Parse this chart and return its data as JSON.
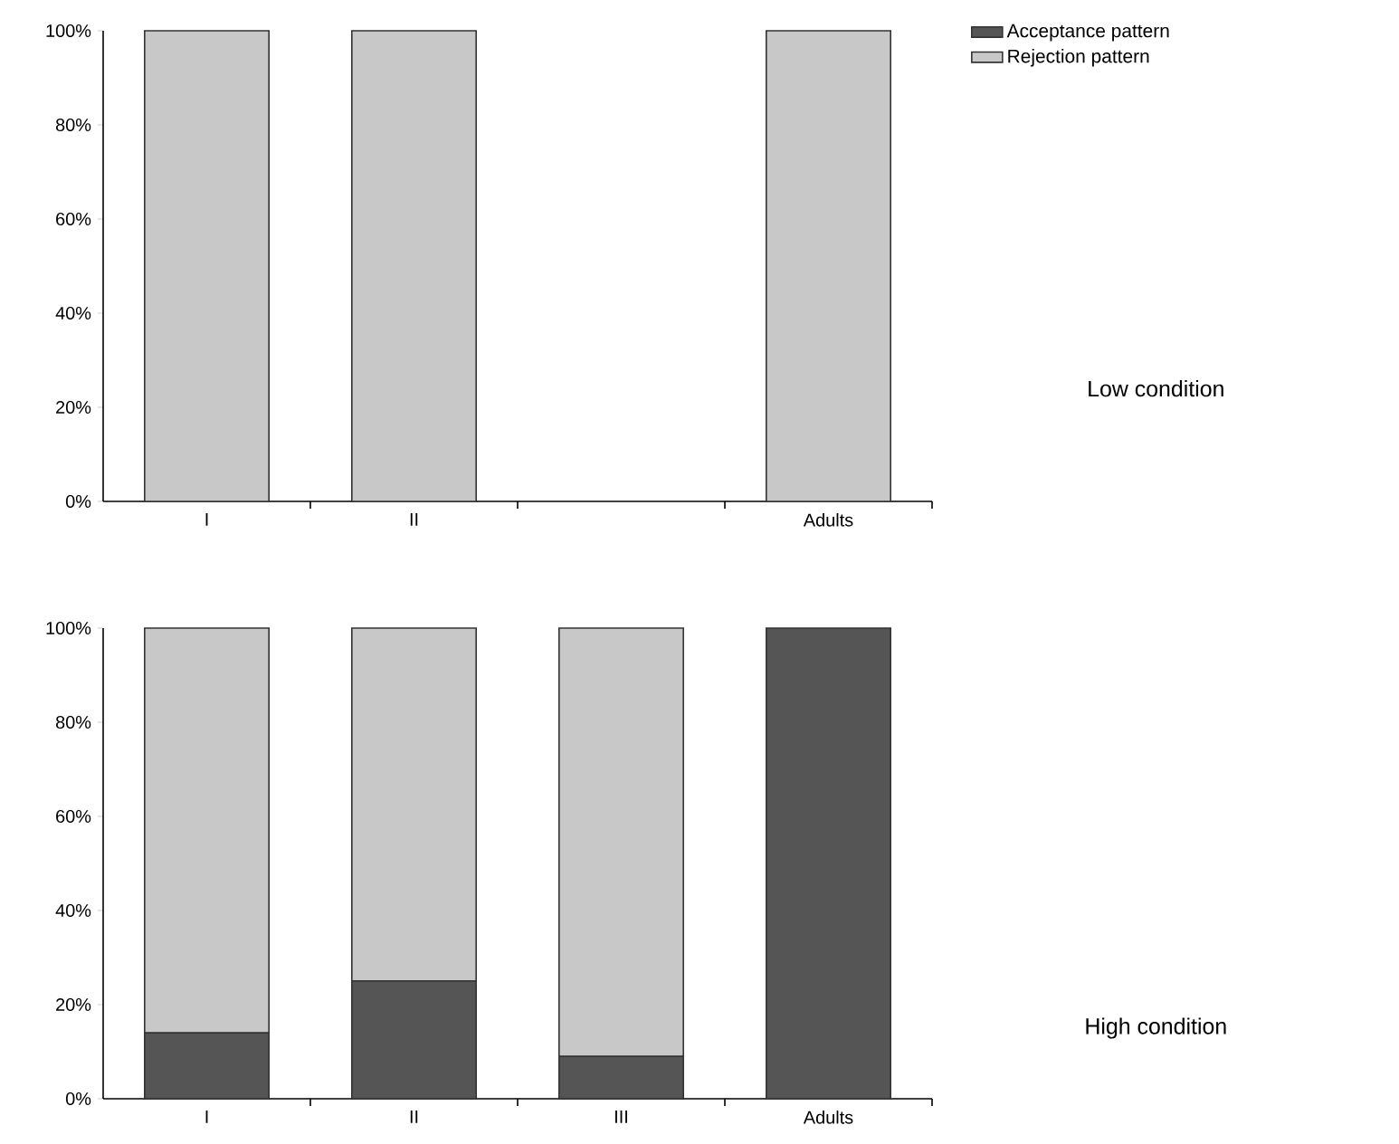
{
  "chart_data": [
    {
      "type": "bar",
      "annotations": [
        "Low condition"
      ],
      "stacked": true,
      "legend": "top right",
      "categories": [
        "I",
        "II",
        null,
        "Adults"
      ],
      "series": [
        {
          "name": "Acceptance pattern",
          "color": "#555555",
          "values": [
            0,
            0,
            null,
            0
          ]
        },
        {
          "name": "Rejection pattern",
          "color": "#c8c8c8",
          "values": [
            100,
            100,
            null,
            100
          ]
        }
      ],
      "ylim": [
        0,
        100
      ],
      "yticks": [
        {
          "value": 0,
          "label": "0%"
        },
        {
          "value": 20,
          "label": "20%"
        },
        {
          "value": 40,
          "label": "40%"
        },
        {
          "value": 60,
          "label": "60%"
        },
        {
          "value": 80,
          "label": "80%"
        },
        {
          "value": 100,
          "label": "100%"
        }
      ]
    },
    {
      "type": "bar",
      "annotations": [
        "High condition"
      ],
      "stacked": true,
      "categories": [
        "I",
        "II",
        "III",
        "Adults"
      ],
      "series": [
        {
          "color": "#555555",
          "values": [
            14,
            25,
            9,
            100
          ]
        },
        {
          "color": "#c8c8c8",
          "values": [
            86,
            75,
            91,
            0
          ]
        }
      ],
      "ylim": [
        0,
        100
      ],
      "yticks": [
        {
          "value": 0,
          "label": "0%"
        },
        {
          "value": 20,
          "label": "20%"
        },
        {
          "value": 40,
          "label": "40%"
        },
        {
          "value": 60,
          "label": "60%"
        },
        {
          "value": 80,
          "label": "80%"
        },
        {
          "value": 100,
          "label": "100%"
        }
      ]
    }
  ]
}
